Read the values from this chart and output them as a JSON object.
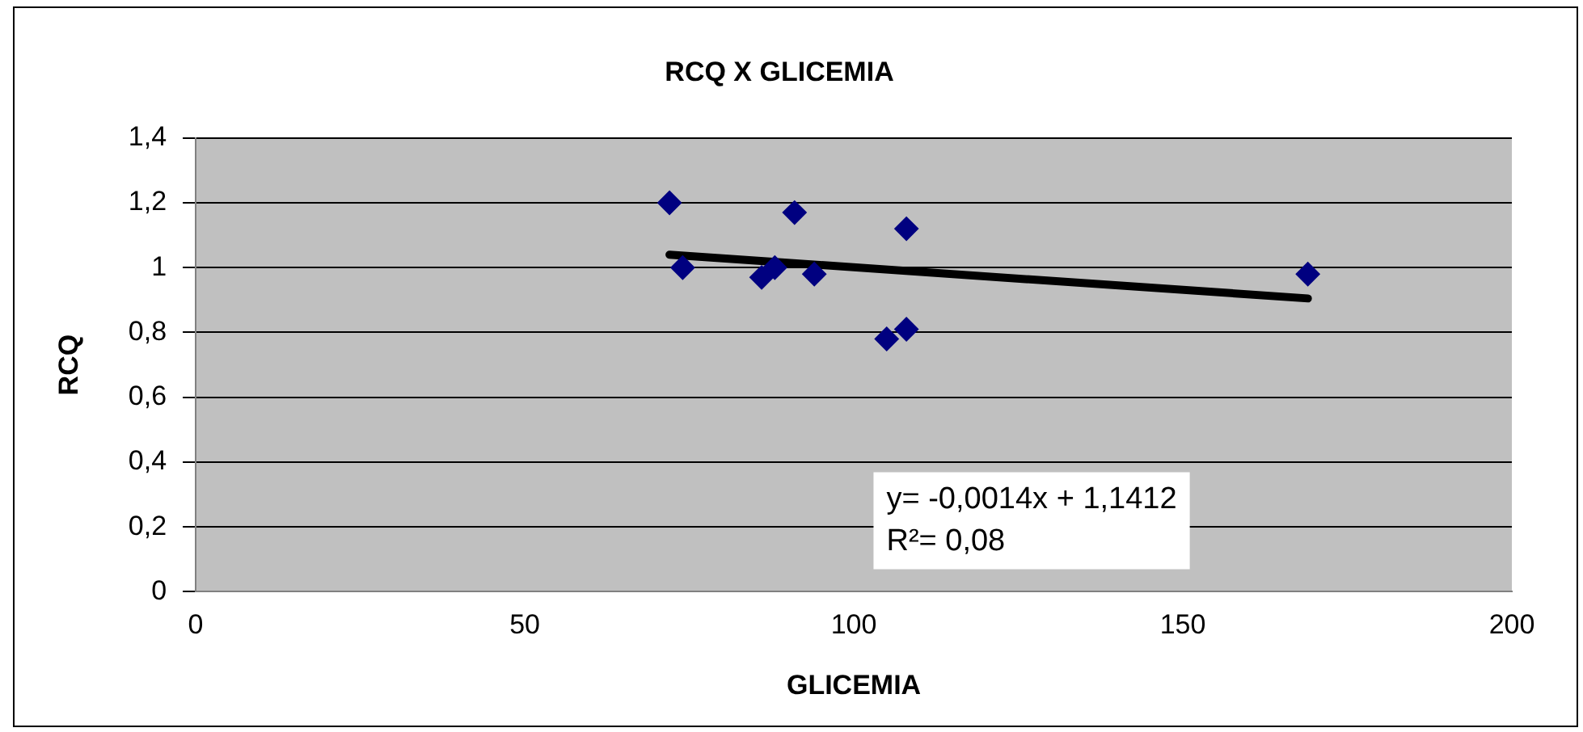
{
  "chart_data": {
    "type": "scatter",
    "title": "RCQ X GLICEMIA",
    "xlabel": "GLICEMIA",
    "ylabel": "RCQ",
    "series": [
      {
        "color": "#000080",
        "marker": "diamond",
        "x": [
          72,
          74,
          86,
          88,
          91,
          94,
          105,
          108,
          108,
          169
        ],
        "values": [
          1.2,
          1.0,
          0.97,
          1.0,
          1.17,
          0.98,
          0.78,
          0.81,
          1.12,
          0.98
        ]
      },
      {
        "type": "line",
        "marker": "none",
        "color": "#000000",
        "x": [
          72,
          169
        ],
        "values": [
          1.04,
          0.905
        ]
      }
    ],
    "xlim": [
      0,
      200
    ],
    "xticks": [
      0,
      50,
      100,
      150,
      200
    ],
    "ylim": [
      0,
      1.4
    ],
    "yticks": [
      0,
      {
        "value": 0.2,
        "label": "0,2"
      },
      {
        "value": 0.4,
        "label": "0,4"
      },
      {
        "value": 0.6,
        "label": "0,6"
      },
      {
        "value": 0.8,
        "label": "0,8"
      },
      1,
      {
        "value": 1.2,
        "label": "1,2"
      },
      {
        "value": 1.4,
        "label": "1,4"
      }
    ],
    "grid": "y",
    "legend": false,
    "annotations": [
      "y= -0,0014x + 1,1412",
      "R²= 0,08"
    ]
  }
}
